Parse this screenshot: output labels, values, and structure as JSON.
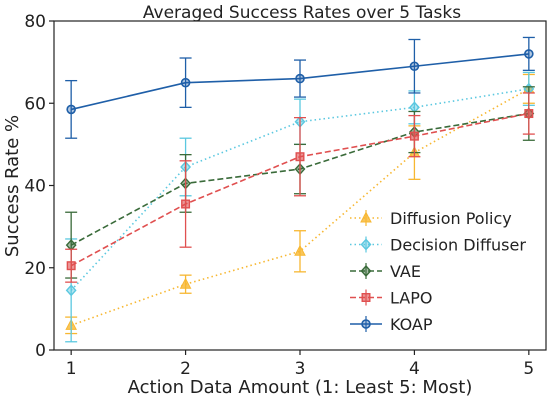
{
  "chart_data": {
    "type": "line",
    "title": "Averaged Success Rates over 5 Tasks",
    "xlabel": "Action Data Amount (1: Least  5: Most)",
    "ylabel": "Success Rate %",
    "x": [
      1,
      2,
      3,
      4,
      5
    ],
    "x_ticks": [
      "1",
      "2",
      "3",
      "4",
      "5"
    ],
    "y_ticks": [
      "0",
      "20",
      "40",
      "60",
      "80"
    ],
    "xlim": [
      0.85,
      5.15
    ],
    "ylim": [
      0,
      80
    ],
    "grid": false,
    "legend": "bottom-right",
    "series": [
      {
        "name": "Diffusion Policy",
        "color": "#f7b731",
        "line_style": "dotted",
        "marker": "triangle-up",
        "values": [
          6,
          16,
          24,
          48,
          63.5
        ],
        "error": [
          2,
          2.2,
          5,
          6.5,
          3.5
        ]
      },
      {
        "name": "Decision Diffuser",
        "color": "#5bc8e0",
        "line_style": "dotted",
        "marker": "diamond",
        "values": [
          14.5,
          44.5,
          55.5,
          59,
          63.5
        ],
        "error": [
          12.5,
          7,
          5.5,
          4,
          4
        ]
      },
      {
        "name": "VAE",
        "color": "#3a6b3a",
        "line_style": "dashed",
        "marker": "diamond",
        "values": [
          25.5,
          40.5,
          44,
          53,
          57.5
        ],
        "error": [
          8,
          7,
          6,
          5,
          6.5
        ]
      },
      {
        "name": "LAPO",
        "color": "#e05050",
        "line_style": "dashed",
        "marker": "square",
        "values": [
          20.5,
          35.5,
          47,
          52,
          57.5
        ],
        "error": [
          4,
          10.5,
          9.5,
          5,
          5
        ]
      },
      {
        "name": "KOAP",
        "color": "#1f5fa8",
        "line_style": "solid",
        "marker": "circle",
        "values": [
          58.5,
          65,
          66,
          69,
          72
        ],
        "error": [
          7,
          6,
          4.5,
          6.5,
          4
        ]
      }
    ]
  }
}
